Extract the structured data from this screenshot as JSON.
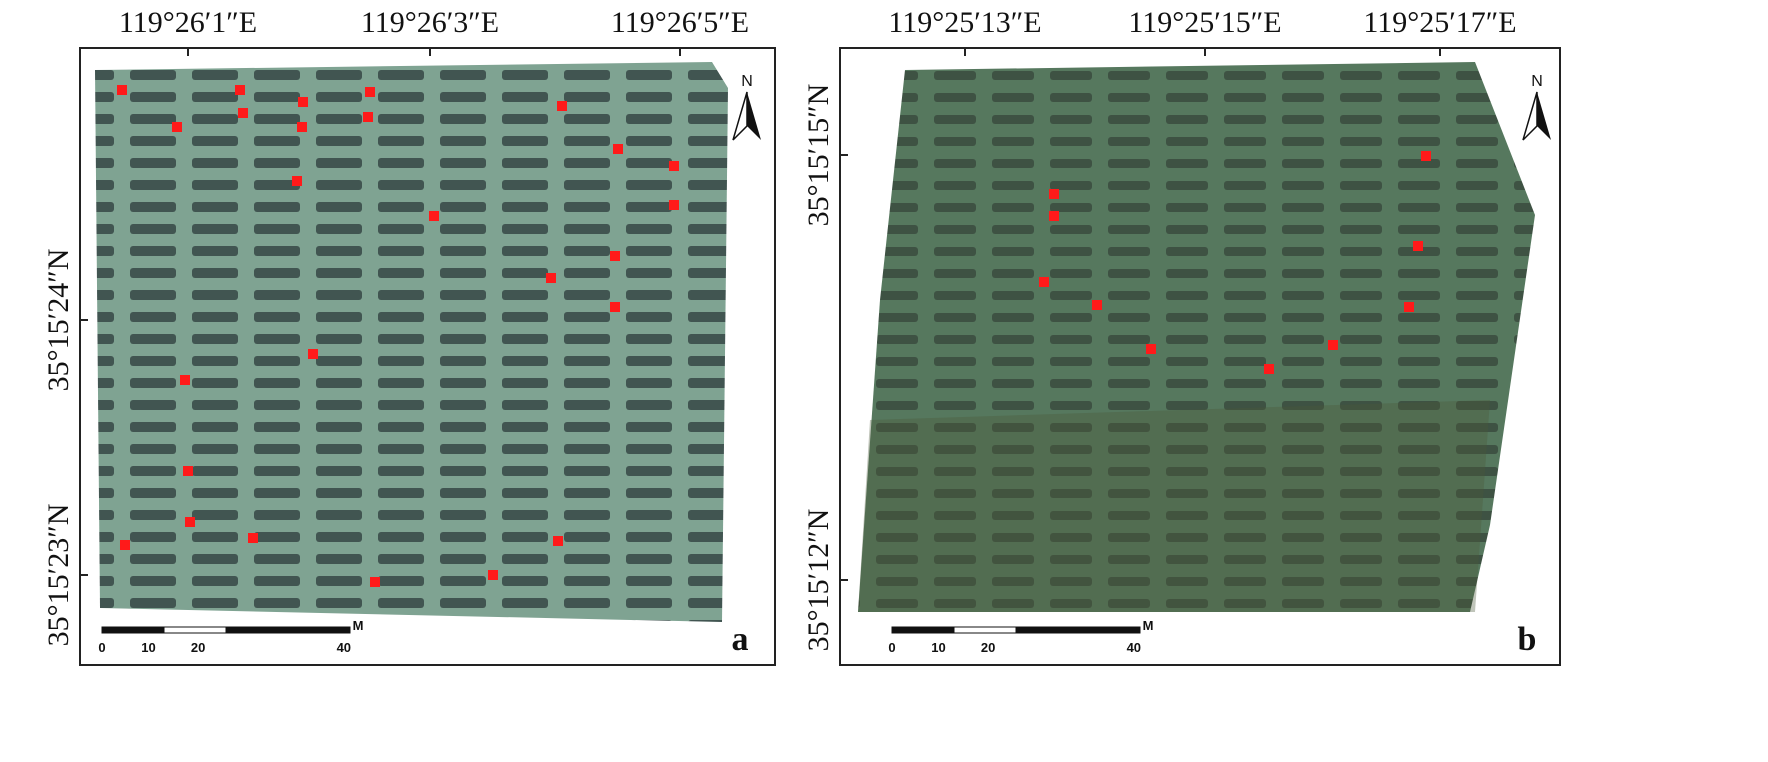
{
  "panels": [
    {
      "label": "a",
      "top_labels": [
        "119°26′1″E",
        "119°26′3″E",
        "119°26′5″E"
      ],
      "left_labels": [
        "35°15′24″N",
        "35°15′23″N"
      ],
      "scale_labels": [
        0,
        10,
        20,
        40
      ],
      "scale_unit": "M",
      "north": "N"
    },
    {
      "label": "b",
      "top_labels": [
        "119°25′13″E",
        "119°25′15″E",
        "119°25′17″E"
      ],
      "left_labels": [
        "35°15′15″N",
        "35°15′12″N"
      ],
      "scale_labels": [
        0,
        10,
        20,
        40
      ],
      "scale_unit": "M",
      "north": "N"
    }
  ]
}
